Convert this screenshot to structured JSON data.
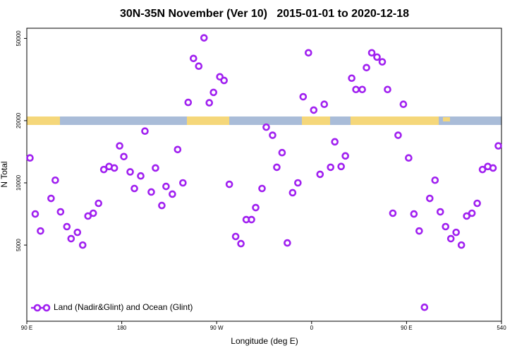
{
  "chart_data": {
    "type": "scatter",
    "title": "30N-35N November (Ver 10)   2015-01-01 to 2020-12-18",
    "x_label": "Longitude (deg E)",
    "y_label": "N Total",
    "xlim": [
      90,
      540
    ],
    "xticks": [
      {
        "value": 90,
        "label": "90 E"
      },
      180,
      {
        "value": 270,
        "label": "90 W"
      },
      {
        "value": 360,
        "label": "0"
      },
      {
        "value": 450,
        "label": "90 E"
      },
      540
    ],
    "ylim": [
      2140,
      56000
    ],
    "ylog": true,
    "yticks": [
      5000,
      10000,
      20000,
      50000
    ],
    "legend": "bottom-left",
    "series": [
      {
        "name": "Land (Nadir&Glint) and Ocean (Glint)",
        "color": "#a020f0",
        "x": [
          93,
          98,
          103,
          113,
          117,
          122,
          128,
          132,
          138,
          143,
          148,
          153,
          158,
          163,
          168,
          173,
          178,
          182,
          188,
          192,
          198,
          202,
          208,
          212,
          218,
          222,
          228,
          233,
          238,
          243,
          248,
          253,
          258,
          263,
          267,
          273,
          277,
          282,
          288,
          293,
          298,
          303,
          307,
          313,
          317,
          323,
          327,
          332,
          337,
          342,
          347,
          352,
          357,
          362,
          368,
          372,
          378,
          382,
          388,
          392,
          398,
          402,
          408,
          412,
          417,
          422,
          427,
          432,
          437,
          442,
          447,
          452,
          457,
          462,
          467,
          472,
          477,
          482,
          487,
          492,
          497,
          502,
          507,
          512,
          517,
          522,
          527,
          532,
          537
        ],
        "values": [
          13200,
          7070,
          5850,
          8410,
          10300,
          7240,
          6140,
          5370,
          5760,
          5000,
          6910,
          7130,
          7960,
          11600,
          12000,
          11800,
          15100,
          13400,
          11300,
          9390,
          10800,
          17800,
          9030,
          11800,
          7770,
          9610,
          8820,
          14500,
          10000,
          24500,
          40000,
          36700,
          50300,
          24400,
          27400,
          32600,
          31300,
          9840,
          5500,
          5080,
          6640,
          6640,
          7590,
          9390,
          18600,
          17000,
          11900,
          14000,
          5120,
          8960,
          10000,
          26100,
          42600,
          22500,
          11000,
          24000,
          11900,
          15800,
          12000,
          13500,
          32100,
          28300,
          28300,
          36100,
          42600,
          40600,
          38500,
          28300,
          7130,
          17000,
          24000,
          13200,
          7070,
          5850,
          2500,
          8410,
          10300,
          7240,
          6140,
          5370,
          5760,
          5000,
          6910,
          7130,
          7960,
          11600,
          12000,
          11800,
          15100
        ]
      }
    ]
  }
}
